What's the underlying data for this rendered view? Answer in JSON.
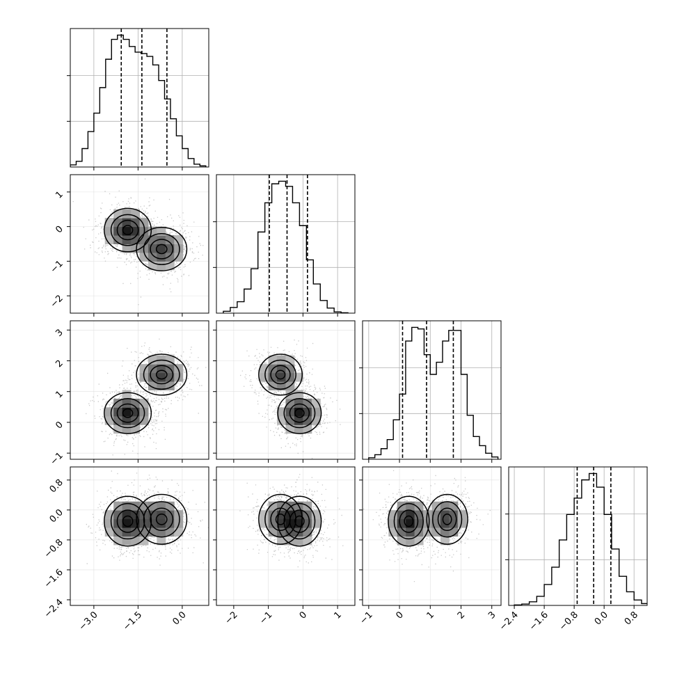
{
  "chart_data": {
    "type": "corner",
    "variables": 4,
    "axis_labels": [
      "",
      "",
      "",
      ""
    ],
    "ranges": [
      [
        -3.8,
        0.9
      ],
      [
        -2.5,
        1.5
      ],
      [
        -1.2,
        3.3
      ],
      [
        -2.55,
        1.15
      ]
    ],
    "ticks": [
      [
        -3.0,
        -1.5,
        0.0
      ],
      [
        -2,
        -1,
        0,
        1
      ],
      [
        -1,
        0,
        1,
        2,
        3
      ],
      [
        -2.4,
        -1.6,
        -0.8,
        0.0,
        0.8
      ]
    ],
    "tick_labels": [
      [
        "−3.0",
        "−1.5",
        "0.0"
      ],
      [
        "−2",
        "−1",
        "0",
        "1"
      ],
      [
        "−1",
        "0",
        "1",
        "2",
        "3"
      ],
      [
        "−2.4",
        "−1.6",
        "−0.8",
        "0.0",
        "0.8"
      ]
    ],
    "quantiles": [
      [
        -2.07,
        -1.37,
        -0.52
      ],
      [
        -0.97,
        -0.46,
        0.13
      ],
      [
        0.1,
        0.88,
        1.75
      ],
      [
        -0.72,
        -0.28,
        0.18
      ]
    ],
    "hist_edges": [
      [
        -3.8,
        -3.6,
        -3.4,
        -3.2,
        -3.0,
        -2.8,
        -2.6,
        -2.4,
        -2.2,
        -2.0,
        -1.8,
        -1.6,
        -1.4,
        -1.2,
        -1.0,
        -0.8,
        -0.6,
        -0.4,
        -0.2,
        0.0,
        0.2,
        0.4,
        0.6,
        0.8
      ],
      [
        -2.3,
        -2.1,
        -1.9,
        -1.7,
        -1.5,
        -1.3,
        -1.1,
        -0.9,
        -0.7,
        -0.5,
        -0.3,
        -0.1,
        0.1,
        0.3,
        0.5,
        0.7,
        0.9,
        1.1,
        1.3
      ],
      [
        -1.0,
        -0.8,
        -0.6,
        -0.4,
        -0.2,
        0.0,
        0.2,
        0.4,
        0.6,
        0.8,
        1.0,
        1.2,
        1.4,
        1.6,
        1.8,
        2.0,
        2.2,
        2.4,
        2.6,
        2.8,
        3.0,
        3.2
      ],
      [
        -2.4,
        -2.2,
        -2.0,
        -1.8,
        -1.6,
        -1.4,
        -1.2,
        -1.0,
        -0.8,
        -0.6,
        -0.4,
        -0.2,
        0.0,
        0.2,
        0.4,
        0.6,
        0.8,
        1.0,
        1.2
      ]
    ],
    "hist_counts": [
      [
        15,
        40,
        130,
        250,
        380,
        560,
        760,
        900,
        930,
        900,
        850,
        810,
        800,
        780,
        720,
        610,
        480,
        340,
        220,
        130,
        60,
        20,
        8
      ],
      [
        15,
        45,
        90,
        190,
        350,
        640,
        870,
        1020,
        1040,
        1000,
        870,
        690,
        420,
        230,
        100,
        40,
        10,
        3
      ],
      [
        10,
        30,
        70,
        130,
        260,
        430,
        780,
        870,
        860,
        690,
        560,
        640,
        780,
        850,
        850,
        560,
        290,
        150,
        90,
        40,
        15
      ],
      [
        5,
        15,
        40,
        100,
        230,
        420,
        720,
        1000,
        1180,
        1380,
        1450,
        1300,
        1000,
        620,
        320,
        150,
        60,
        20
      ]
    ],
    "hist_ylim": [
      0,
      1000,
      1080,
      1500
    ],
    "density_components": [
      {
        "mean": [
          -1.85,
          -0.1,
          0.3,
          -0.3
        ],
        "sd": [
          0.42,
          0.33,
          0.35,
          0.35
        ],
        "weight": 0.55
      },
      {
        "mean": [
          -0.7,
          -0.65,
          1.55,
          -0.25
        ],
        "sd": [
          0.45,
          0.33,
          0.35,
          0.35
        ],
        "weight": 0.45
      }
    ],
    "scatter": true,
    "contours": true,
    "grid": true,
    "legend": "none"
  }
}
